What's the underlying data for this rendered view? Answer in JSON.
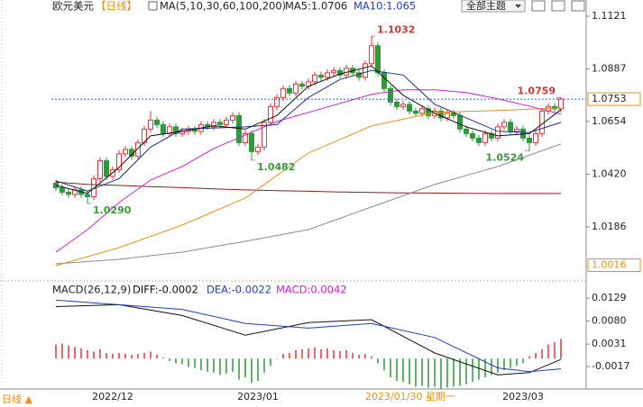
{
  "header": {
    "symbol": "欧元美元",
    "period": "【日线】",
    "indicator": "MA(5,10,30,60,100,200)",
    "ma_values": [
      "MA5:1.0706",
      "MA10:1.065"
    ]
  },
  "toolbar": {
    "theme": "全部主题"
  },
  "footer": {
    "period": "日线 ▲"
  },
  "chart_data": [
    {
      "type": "candlestick",
      "categories": [
        null,
        null,
        null,
        null,
        null,
        null,
        null,
        null,
        null,
        "2022/12",
        null,
        null,
        null,
        null,
        null,
        null,
        null,
        null,
        null,
        null,
        null,
        null,
        null,
        null,
        null,
        null,
        null,
        null,
        null,
        null,
        null,
        null,
        "2023/01",
        null,
        null,
        null,
        null,
        null,
        null,
        null,
        null,
        null,
        null,
        null,
        null,
        null,
        null,
        null,
        null,
        null,
        null,
        null,
        null,
        null,
        null,
        null,
        null,
        null,
        null,
        null,
        null,
        null,
        null,
        null,
        null,
        null,
        null,
        null,
        null,
        null,
        null,
        null,
        null,
        null,
        "2023/03",
        null,
        null,
        null,
        null,
        null,
        null
      ],
      "crosshair_label": "2023/01/30 星期一",
      "open": [
        1.038,
        1.036,
        1.034,
        1.033,
        1.035,
        1.033,
        1.032,
        1.04,
        1.048,
        1.041,
        1.044,
        1.051,
        1.053,
        1.05,
        1.056,
        1.062,
        1.066,
        1.064,
        1.06,
        1.063,
        1.06,
        1.061,
        1.062,
        1.061,
        1.064,
        1.063,
        1.065,
        1.064,
        1.066,
        1.068,
        1.056,
        1.06,
        1.052,
        1.054,
        1.065,
        1.072,
        1.076,
        1.08,
        1.078,
        1.082,
        1.081,
        1.083,
        1.086,
        1.085,
        1.087,
        1.088,
        1.086,
        1.089,
        1.087,
        1.085,
        1.091,
        1.099,
        1.087,
        1.08,
        1.074,
        1.072,
        1.073,
        1.07,
        1.069,
        1.071,
        1.068,
        1.07,
        1.067,
        1.069,
        1.068,
        1.062,
        1.06,
        1.058,
        1.056,
        1.06,
        1.058,
        1.063,
        1.065,
        1.061,
        1.062,
        1.058,
        1.056,
        1.06,
        1.07,
        1.072,
        1.071
      ],
      "high": [
        1.0395,
        1.0375,
        1.0355,
        1.0365,
        1.0365,
        1.0345,
        1.0415,
        1.0495,
        1.0495,
        1.0455,
        1.0525,
        1.0545,
        1.0545,
        1.0575,
        1.0635,
        1.07,
        1.0675,
        1.0655,
        1.0645,
        1.0645,
        1.0625,
        1.0635,
        1.0635,
        1.0655,
        1.0655,
        1.0665,
        1.0665,
        1.0675,
        1.0695,
        1.0695,
        1.0615,
        1.0615,
        1.0555,
        1.0665,
        1.0735,
        1.0775,
        1.0815,
        1.0815,
        1.0835,
        1.0835,
        1.0845,
        1.0875,
        1.0875,
        1.0885,
        1.0895,
        1.0895,
        1.0905,
        1.0905,
        1.0885,
        1.0925,
        1.1032,
        1.1005,
        1.0885,
        1.0815,
        1.0755,
        1.0745,
        1.0745,
        1.0715,
        1.0725,
        1.0725,
        1.0715,
        1.0715,
        1.0705,
        1.0705,
        1.0695,
        1.0635,
        1.0615,
        1.0595,
        1.0615,
        1.0615,
        1.0645,
        1.0665,
        1.0665,
        1.0635,
        1.0635,
        1.0595,
        1.0615,
        1.0715,
        1.0735,
        1.0735,
        1.0759
      ],
      "low": [
        1.0345,
        1.0325,
        1.0315,
        1.0315,
        1.0315,
        1.029,
        1.0305,
        1.0385,
        1.0395,
        1.0395,
        1.0425,
        1.0495,
        1.0485,
        1.0485,
        1.0545,
        1.0605,
        1.0625,
        1.0585,
        1.0585,
        1.0585,
        1.0585,
        1.0595,
        1.0595,
        1.0595,
        1.0615,
        1.0615,
        1.0625,
        1.0625,
        1.0645,
        1.0545,
        1.0545,
        1.0482,
        1.0505,
        1.0525,
        1.0635,
        1.0705,
        1.0745,
        1.0765,
        1.0765,
        1.0795,
        1.0795,
        1.0815,
        1.0835,
        1.0835,
        1.0855,
        1.0845,
        1.0845,
        1.0855,
        1.0835,
        1.0835,
        1.0895,
        1.0855,
        1.0785,
        1.0725,
        1.0705,
        1.0705,
        1.0685,
        1.0675,
        1.0675,
        1.0665,
        1.0665,
        1.0655,
        1.0655,
        1.0665,
        1.0605,
        1.0585,
        1.0565,
        1.0545,
        1.0545,
        1.0565,
        1.0565,
        1.0615,
        1.0595,
        1.0595,
        1.0565,
        1.0524,
        1.0545,
        1.0585,
        1.0685,
        1.0695,
        1.0695
      ],
      "close": [
        1.036,
        1.034,
        1.033,
        1.035,
        1.033,
        1.032,
        1.04,
        1.048,
        1.041,
        1.044,
        1.051,
        1.053,
        1.05,
        1.056,
        1.062,
        1.066,
        1.064,
        1.06,
        1.063,
        1.06,
        1.061,
        1.062,
        1.061,
        1.064,
        1.063,
        1.065,
        1.064,
        1.066,
        1.068,
        1.056,
        1.06,
        1.052,
        1.054,
        1.065,
        1.072,
        1.076,
        1.08,
        1.078,
        1.082,
        1.081,
        1.083,
        1.086,
        1.085,
        1.087,
        1.088,
        1.086,
        1.089,
        1.087,
        1.085,
        1.091,
        1.099,
        1.087,
        1.08,
        1.074,
        1.072,
        1.073,
        1.07,
        1.069,
        1.071,
        1.068,
        1.07,
        1.067,
        1.069,
        1.068,
        1.062,
        1.06,
        1.058,
        1.056,
        1.06,
        1.058,
        1.063,
        1.065,
        1.061,
        1.062,
        1.058,
        1.056,
        1.06,
        1.07,
        1.072,
        1.071,
        1.0753
      ],
      "up_color": "#e0363c",
      "down_color": "#2f9a3c",
      "series": [
        {
          "color": "#8b1f1f",
          "x": [
            0,
            5,
            10,
            15,
            20,
            25,
            30,
            35,
            40,
            45,
            50,
            55,
            60,
            65,
            70,
            75,
            80
          ],
          "values": [
            1.0385,
            1.0375,
            1.037,
            1.0365,
            1.036,
            1.0355,
            1.035,
            1.0347,
            1.0344,
            1.0341,
            1.0339,
            1.0337,
            1.0336,
            1.0335,
            1.0334,
            1.0334,
            1.0334
          ]
        },
        {
          "color": "#8c8c8c",
          "x": [
            0,
            10,
            20,
            30,
            40,
            50,
            60,
            70,
            80
          ],
          "values": [
            1.0022,
            1.0042,
            1.0074,
            1.0122,
            1.0174,
            1.0274,
            1.0374,
            1.0454,
            1.0554
          ]
        },
        {
          "color": "#e8901c",
          "x": [
            0,
            10,
            20,
            30,
            40,
            50,
            60,
            70,
            80
          ],
          "values": [
            1.0014,
            1.0094,
            1.0194,
            1.0314,
            1.0514,
            1.0634,
            1.0694,
            1.0702,
            1.0714
          ]
        },
        {
          "color": "#d21fd2",
          "x": [
            0,
            5,
            10,
            15,
            20,
            25,
            30,
            35,
            40,
            45,
            50,
            55,
            60,
            65,
            70,
            75,
            80
          ],
          "values": [
            1.0074,
            1.0174,
            1.0294,
            1.0394,
            1.0454,
            1.0534,
            1.0594,
            1.0654,
            1.0694,
            1.0734,
            1.0774,
            1.0794,
            1.0794,
            1.0782,
            1.0754,
            1.0722,
            1.0686
          ]
        },
        {
          "color": "#1c2f8c",
          "x": [
            0,
            5,
            10,
            15,
            20,
            25,
            30,
            35,
            40,
            45,
            50,
            55,
            60,
            65,
            70,
            75,
            80
          ],
          "values": [
            1.039,
            1.0345,
            1.04,
            1.054,
            1.062,
            1.0625,
            1.063,
            1.064,
            1.076,
            1.084,
            1.088,
            1.086,
            1.073,
            1.067,
            1.061,
            1.0605,
            1.065
          ]
        },
        {
          "color": "#111111",
          "x": [
            0,
            5,
            10,
            15,
            20,
            25,
            30,
            35,
            40,
            45,
            50,
            55,
            60,
            65,
            70,
            75,
            80
          ],
          "values": [
            1.037,
            1.0335,
            1.045,
            1.059,
            1.061,
            1.0635,
            1.062,
            1.068,
            1.081,
            1.0865,
            1.09,
            1.077,
            1.069,
            1.063,
            1.059,
            1.06,
            1.0706
          ]
        }
      ],
      "annotations": [
        1.1032,
        1.0759,
        1.0482,
        {
          "value": 1.029,
          "label": "1.0290"
        },
        1.0524
      ],
      "high_color": "#d83434",
      "low_color": "#3a9a3a",
      "last_price": 1.0753,
      "last_price_color": "#e8901c",
      "axis_marker": 1.0016,
      "ylim": [
        0.9954,
        1.1161
      ],
      "yticks": [
        1.1121,
        1.0887,
        1.0654,
        {
          "value": 1.042,
          "label": "1.0420"
        },
        1.0186
      ]
    },
    {
      "type": "macd",
      "title": "MACD(26,12,9)",
      "legend": [
        {
          "text": "DIFF:-0.0002",
          "color": "#111111"
        },
        {
          "text": "DEA:-0.0022",
          "color": "#1c3fbf"
        },
        {
          "text": "MACD:0.0042",
          "color": "#d21fd2"
        }
      ],
      "histogram": [
        0.003,
        0.0032,
        0.0028,
        0.0025,
        0.0022,
        0.0018,
        0.0015,
        0.002,
        0.0012,
        0.001,
        0.0012,
        0.001,
        0.0008,
        0.001,
        0.0012,
        0.0015,
        0.0008,
        0.0002,
        -0.0005,
        -0.001,
        -0.0012,
        -0.0018,
        -0.002,
        -0.0025,
        -0.0028,
        -0.003,
        -0.0035,
        -0.0032,
        -0.0028,
        -0.0045,
        -0.004,
        -0.0052,
        -0.0048,
        -0.003,
        -0.0015,
        0,
        0.001,
        0.0012,
        0.0018,
        0.002,
        0.0022,
        0.0024,
        0.002,
        0.0022,
        0.0018,
        0.0016,
        0.0018,
        0.0012,
        0.0008,
        0.001,
        0.0005,
        -0.001,
        -0.0025,
        -0.004,
        -0.0048,
        -0.005,
        -0.0055,
        -0.006,
        -0.0058,
        -0.0062,
        -0.006,
        -0.0065,
        -0.0062,
        -0.006,
        -0.0058,
        -0.0055,
        -0.005,
        -0.0045,
        -0.004,
        -0.0035,
        -0.003,
        -0.0025,
        -0.002,
        -0.0015,
        -0.001,
        0.0005,
        0.0012,
        0.002,
        0.003,
        0.0035,
        0.0042
      ],
      "up_color": "#e0363c",
      "down_color": "#2f9a3c",
      "series": [
        {
          "color": "#111111",
          "x": [
            0,
            10,
            20,
            30,
            40,
            50,
            60,
            70,
            75,
            80
          ],
          "values": [
            0.0111,
            0.0115,
            0.0092,
            0.005,
            0.0077,
            0.0083,
            0.0012,
            -0.0035,
            -0.003,
            -0.0002
          ]
        },
        {
          "color": "#1c3fbf",
          "x": [
            0,
            10,
            20,
            30,
            40,
            50,
            60,
            70,
            75,
            80
          ],
          "values": [
            0.0125,
            0.0115,
            0.0105,
            0.0075,
            0.0065,
            0.0075,
            0.0045,
            -0.002,
            -0.0028,
            -0.0022
          ]
        }
      ],
      "ylim": [
        -0.0065,
        0.016
      ],
      "yticks": [
        0.0129,
        {
          "value": 0.008,
          "label": "0.0080"
        },
        0.0031,
        -0.0017
      ]
    }
  ]
}
